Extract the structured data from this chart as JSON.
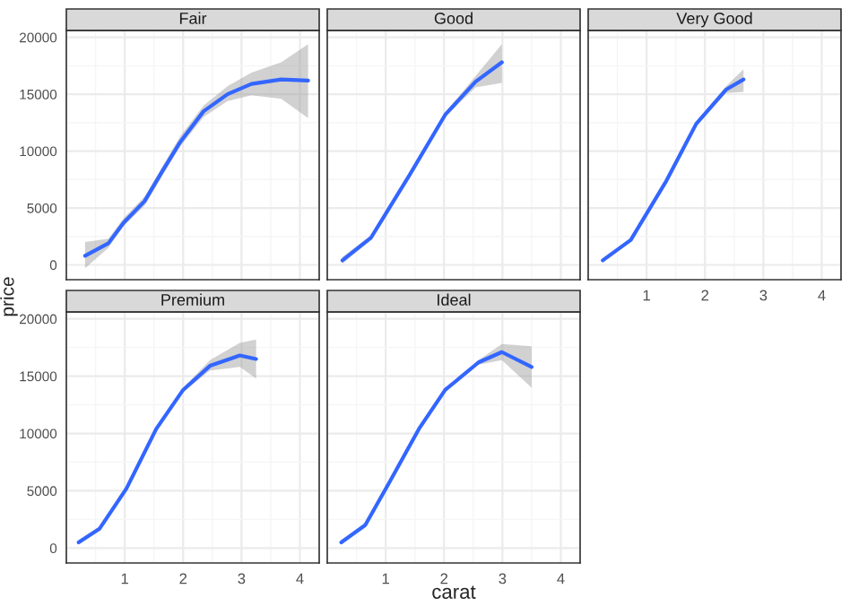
{
  "chart_data": [
    {
      "type": "line",
      "title": "Fair",
      "ylabel": "price",
      "xlim": [
        0.0,
        4.33
      ],
      "ylim": [
        -1300,
        20600
      ],
      "xticks": [
        1,
        2,
        3,
        4
      ],
      "yticks": [
        0,
        5000,
        10000,
        15000,
        20000
      ],
      "grid": true,
      "tick_labels": "y",
      "series": [
        {
          "color": "#3366ff",
          "x": [
            0.32,
            0.72,
            0.98,
            1.34,
            1.64,
            1.95,
            2.35,
            2.76,
            3.17,
            3.68,
            4.14
          ],
          "values": [
            800,
            1900,
            3700,
            5600,
            8200,
            10800,
            13500,
            15000,
            15900,
            16300,
            16200
          ],
          "lower": [
            -300,
            1500,
            3400,
            5200,
            7800,
            10400,
            13000,
            14400,
            14900,
            14600,
            12900
          ],
          "upper": [
            2000,
            2300,
            4100,
            6000,
            8600,
            11300,
            14000,
            15700,
            16900,
            17800,
            19400
          ]
        }
      ]
    },
    {
      "type": "line",
      "title": "Good",
      "xlim": [
        0.0,
        4.33
      ],
      "ylim": [
        -1300,
        20600
      ],
      "xticks": [
        1,
        2,
        3,
        4
      ],
      "yticks": [
        0,
        5000,
        10000,
        15000,
        20000
      ],
      "grid": true,
      "tick_labels": false,
      "series": [
        {
          "color": "#3366ff",
          "x": [
            0.26,
            0.75,
            1.41,
            2.02,
            2.54,
            2.99
          ],
          "values": [
            400,
            2400,
            7900,
            13200,
            16100,
            17800
          ],
          "lower": [
            100,
            2200,
            7700,
            13000,
            15600,
            16000
          ],
          "upper": [
            700,
            2600,
            8100,
            13400,
            16600,
            19400
          ]
        }
      ]
    },
    {
      "type": "line",
      "title": "Very Good",
      "xlim": [
        0.0,
        4.33
      ],
      "ylim": [
        -1300,
        20600
      ],
      "xticks": [
        1,
        2,
        3,
        4
      ],
      "yticks": [
        0,
        5000,
        10000,
        15000,
        20000
      ],
      "grid": true,
      "tick_labels": "x",
      "series": [
        {
          "color": "#3366ff",
          "x": [
            0.25,
            0.73,
            1.34,
            1.85,
            2.36,
            2.66
          ],
          "values": [
            400,
            2200,
            7400,
            12400,
            15400,
            16300
          ],
          "lower": [
            200,
            2000,
            7200,
            12200,
            15100,
            15200
          ],
          "upper": [
            600,
            2300,
            7600,
            12600,
            15700,
            17200
          ]
        }
      ]
    },
    {
      "type": "line",
      "title": "Premium",
      "xlim": [
        0.0,
        4.33
      ],
      "ylim": [
        -1300,
        20600
      ],
      "xticks": [
        1,
        2,
        3,
        4
      ],
      "yticks": [
        0,
        5000,
        10000,
        15000,
        20000
      ],
      "grid": true,
      "series": [
        {
          "color": "#3366ff",
          "x": [
            0.21,
            0.57,
            1.03,
            1.54,
            2.0,
            2.46,
            2.97,
            3.25
          ],
          "values": [
            500,
            1700,
            5200,
            10400,
            13800,
            15900,
            16800,
            16500
          ],
          "lower": [
            300,
            1600,
            5000,
            10200,
            13600,
            15500,
            15800,
            14800
          ],
          "upper": [
            700,
            1900,
            5300,
            10600,
            14000,
            16400,
            17900,
            18200
          ]
        }
      ]
    },
    {
      "type": "line",
      "title": "Ideal",
      "xlabel": "carat",
      "xlim": [
        0.0,
        4.33
      ],
      "ylim": [
        -1300,
        20600
      ],
      "xticks": [
        1,
        2,
        3,
        4
      ],
      "yticks": [
        0,
        5000,
        10000,
        15000,
        20000
      ],
      "grid": true,
      "tick_labels": "x",
      "series": [
        {
          "color": "#3366ff",
          "x": [
            0.24,
            0.65,
            1.06,
            1.57,
            2.02,
            2.59,
            2.99,
            3.5
          ],
          "values": [
            500,
            2000,
            5700,
            10400,
            13800,
            16200,
            17100,
            15800
          ],
          "lower": [
            400,
            1900,
            5600,
            10300,
            13700,
            16000,
            16400,
            14000
          ],
          "upper": [
            700,
            2100,
            5800,
            10500,
            13900,
            16400,
            17800,
            17600
          ]
        }
      ]
    }
  ]
}
